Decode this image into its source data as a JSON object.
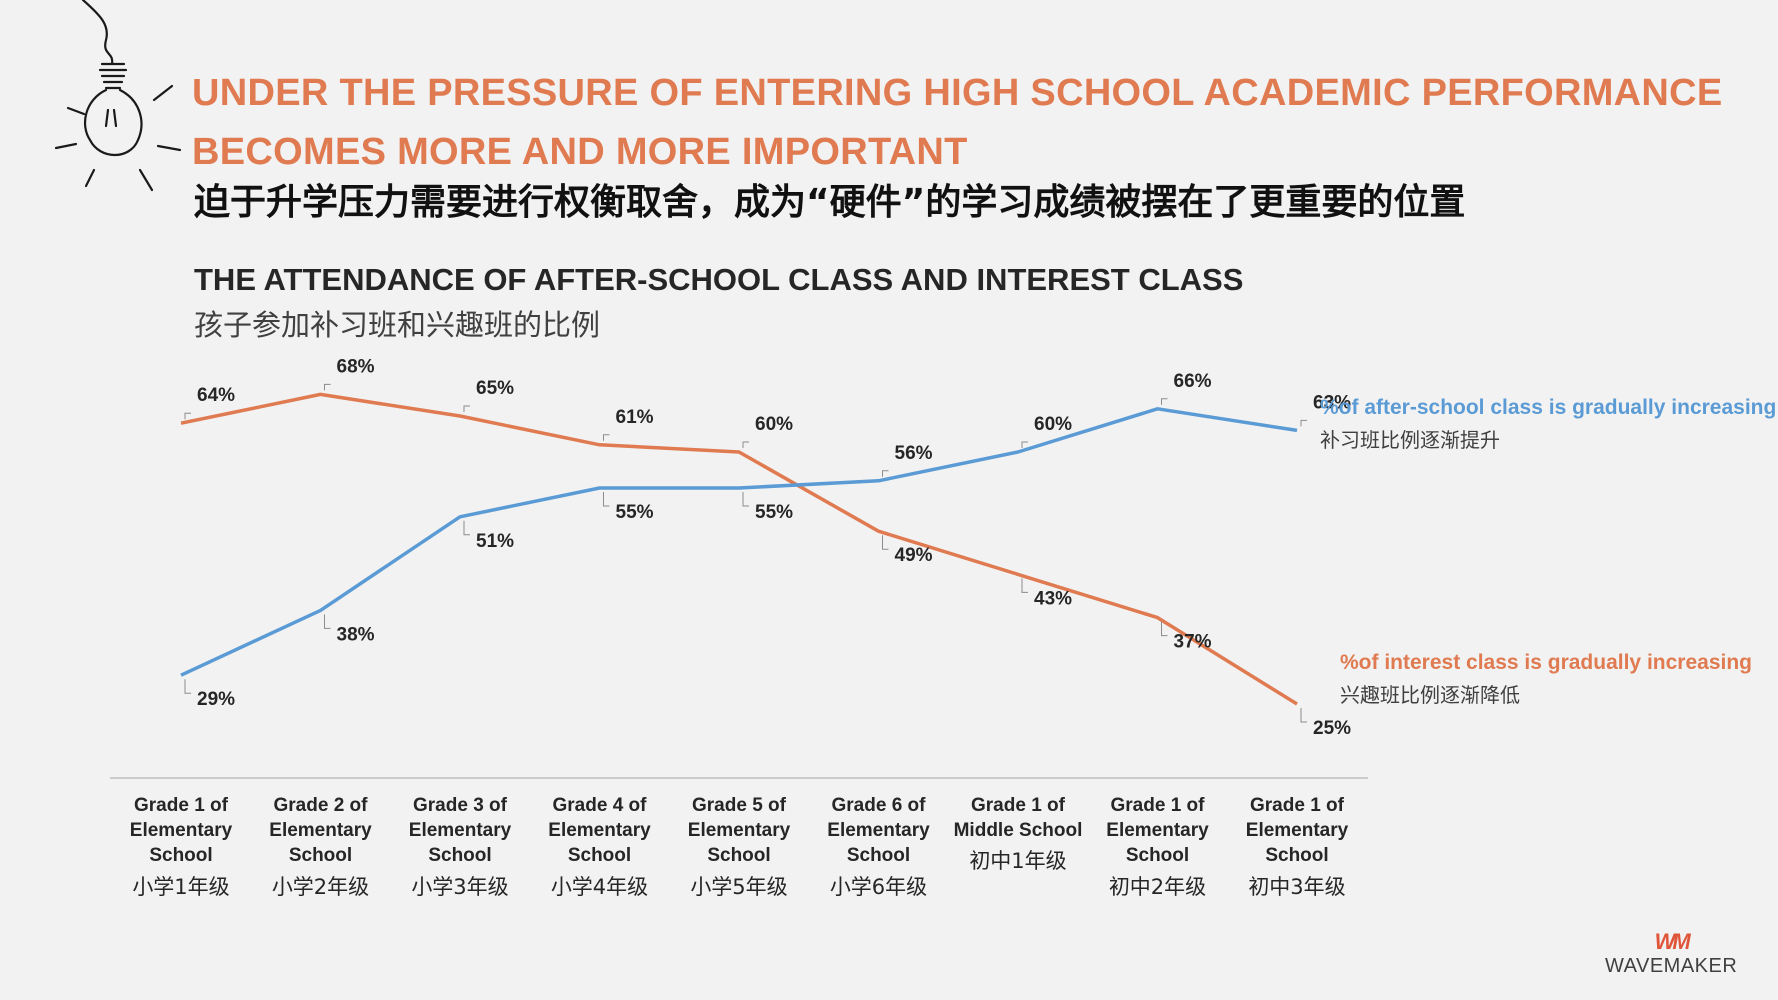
{
  "header": {
    "title_en": "UNDER THE PRESSURE OF ENTERING HIGH SCHOOL ACADEMIC PERFORMANCE BECOMES MORE AND MORE IMPORTANT",
    "title_cn": "迫于升学压力需要进行权衡取舍，成为“硬件”的学习成绩被摆在了更重要的位置"
  },
  "colors": {
    "accent": "#e07a50",
    "blue": "#5b9bd5",
    "text": "#262626"
  },
  "legend": {
    "after_school_en": "%of after-school class is gradually increasing",
    "after_school_cn": "补习班比例逐渐提升",
    "interest_en": "%of interest class is gradually increasing",
    "interest_cn": "兴趣班比例逐渐降低"
  },
  "logo": {
    "text": "WAVEMAKER",
    "mark": "WM"
  },
  "chart_data": {
    "type": "line",
    "title": "THE ATTENDANCE OF AFTER-SCHOOL CLASS AND INTEREST CLASS",
    "subtitle": "孩子参加补习班和兴趣班的比例",
    "categories": [
      {
        "en": [
          "Grade 1 of",
          "Elementary",
          "School"
        ],
        "cn": "小学1年级"
      },
      {
        "en": [
          "Grade 2 of",
          "Elementary",
          "School"
        ],
        "cn": "小学2年级"
      },
      {
        "en": [
          "Grade 3 of",
          "Elementary",
          "School"
        ],
        "cn": "小学3年级"
      },
      {
        "en": [
          "Grade 4 of",
          "Elementary",
          "School"
        ],
        "cn": "小学4年级"
      },
      {
        "en": [
          "Grade 5 of",
          "Elementary",
          "School"
        ],
        "cn": "小学5年级"
      },
      {
        "en": [
          "Grade 6 of",
          "Elementary",
          "School"
        ],
        "cn": "小学6年级"
      },
      {
        "en": [
          "Grade 1 of",
          "Middle School"
        ],
        "cn": "初中1年级"
      },
      {
        "en": [
          "Grade 1 of",
          "Elementary",
          "School"
        ],
        "cn": "初中2年级"
      },
      {
        "en": [
          "Grade 1 of",
          "Elementary",
          "School"
        ],
        "cn": "初中3年级"
      }
    ],
    "series": [
      {
        "name": "interest class",
        "color": "#e07a50",
        "values": [
          64,
          68,
          65,
          61,
          60,
          49,
          43,
          37,
          25
        ]
      },
      {
        "name": "after-school class",
        "color": "#5b9bd5",
        "values": [
          29,
          38,
          51,
          55,
          55,
          56,
          60,
          66,
          63
        ]
      }
    ],
    "ylim": [
      20,
      70
    ],
    "unit": "%",
    "grid": false,
    "legend_position": "right"
  }
}
